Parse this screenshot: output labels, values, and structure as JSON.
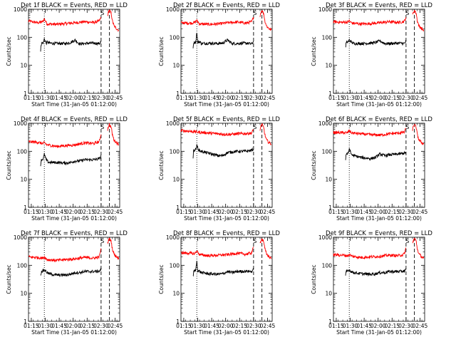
{
  "colors": {
    "events": "#000000",
    "lld": "#ff0000",
    "axes": "#000000",
    "background": "#ffffff"
  },
  "shared": {
    "xlabel": "Start Time (31-Jan-05 01:12:00)",
    "ylabel": "Counts/sec",
    "x_tick_labels": [
      "01:15",
      "01:30",
      "01:45",
      "02:00",
      "02:15",
      "02:30",
      "02:45"
    ],
    "y_tick_labels": [
      "1",
      "10",
      "100",
      "1000"
    ],
    "marker_label": "S"
  },
  "chart_data": [
    {
      "type": "line",
      "title": "Det 1f BLACK = Events, RED = LLD",
      "xlabel": "Start Time (31-Jan-05 01:12:00)",
      "ylabel": "Counts/sec",
      "x_unit": "minutes after 01:12:00",
      "xlim": [
        0,
        98
      ],
      "ylim": [
        1,
        1000
      ],
      "y_scale": "log",
      "dotted_marker_x": 17,
      "dashed_marker_x": [
        78,
        87
      ],
      "saa_marker_x": 79.5,
      "series": [
        {
          "color": "#ff0000",
          "x": [
            0,
            10,
            15,
            17,
            20,
            30,
            40,
            50,
            60,
            70,
            76,
            78
          ],
          "y": [
            380,
            330,
            360,
            450,
            300,
            290,
            310,
            330,
            360,
            340,
            380,
            520
          ]
        },
        {
          "color": "#ff0000",
          "x": [
            85,
            86,
            87,
            89,
            90,
            92,
            95,
            97
          ],
          "y": [
            600,
            800,
            900,
            700,
            400,
            250,
            200,
            180
          ]
        },
        {
          "color": "#000000",
          "x": [
            13,
            13.5,
            14,
            16,
            17,
            19,
            20,
            22,
            30,
            40,
            45,
            50,
            55,
            60,
            70,
            76,
            78
          ],
          "y": [
            30,
            55,
            60,
            65,
            90,
            60,
            70,
            62,
            60,
            60,
            65,
            80,
            58,
            60,
            62,
            60,
            70
          ]
        }
      ]
    },
    {
      "type": "line",
      "title": "Det 2f BLACK = Events, RED = LLD",
      "xlabel": "Start Time (31-Jan-05 01:12:00)",
      "ylabel": "Counts/sec",
      "x_unit": "minutes after 01:12:00",
      "xlim": [
        0,
        98
      ],
      "ylim": [
        1,
        1000
      ],
      "y_scale": "log",
      "dotted_marker_x": 17,
      "dashed_marker_x": [
        78,
        87
      ],
      "saa_marker_x": 79.5,
      "series": [
        {
          "color": "#ff0000",
          "x": [
            0,
            10,
            15,
            17,
            20,
            30,
            40,
            50,
            60,
            70,
            76,
            78
          ],
          "y": [
            330,
            320,
            340,
            400,
            300,
            290,
            300,
            330,
            350,
            320,
            360,
            520
          ]
        },
        {
          "color": "#ff0000",
          "x": [
            85,
            86,
            87,
            89,
            90,
            92,
            95,
            97
          ],
          "y": [
            600,
            800,
            900,
            700,
            400,
            250,
            200,
            180
          ]
        },
        {
          "color": "#000000",
          "x": [
            13,
            13.5,
            14,
            16,
            17,
            18,
            20,
            22,
            30,
            40,
            45,
            50,
            55,
            60,
            70,
            76,
            78
          ],
          "y": [
            40,
            60,
            65,
            70,
            160,
            65,
            70,
            60,
            62,
            60,
            62,
            80,
            60,
            60,
            62,
            58,
            70
          ]
        }
      ]
    },
    {
      "type": "line",
      "title": "Det 3f BLACK = Events, RED = LLD",
      "xlabel": "Start Time (31-Jan-05 01:12:00)",
      "ylabel": "Counts/sec",
      "x_unit": "minutes after 01:12:00",
      "xlim": [
        0,
        98
      ],
      "ylim": [
        1,
        1000
      ],
      "y_scale": "log",
      "dotted_marker_x": 17,
      "dashed_marker_x": [
        78,
        87
      ],
      "saa_marker_x": 79.5,
      "series": [
        {
          "color": "#ff0000",
          "x": [
            0,
            10,
            15,
            17,
            20,
            30,
            40,
            50,
            60,
            70,
            76,
            78
          ],
          "y": [
            360,
            340,
            350,
            380,
            320,
            300,
            310,
            330,
            360,
            340,
            370,
            520
          ]
        },
        {
          "color": "#ff0000",
          "x": [
            85,
            86,
            87,
            89,
            90,
            92,
            95,
            97
          ],
          "y": [
            600,
            800,
            900,
            700,
            400,
            250,
            200,
            180
          ]
        },
        {
          "color": "#000000",
          "x": [
            13,
            13.5,
            14,
            16,
            17,
            20,
            22,
            30,
            40,
            45,
            50,
            55,
            60,
            70,
            76,
            78
          ],
          "y": [
            40,
            60,
            65,
            70,
            80,
            65,
            60,
            60,
            62,
            65,
            75,
            60,
            60,
            62,
            60,
            70
          ]
        }
      ]
    },
    {
      "type": "line",
      "title": "Det 4f BLACK = Events, RED = LLD",
      "xlabel": "Start Time (31-Jan-05 01:12:00)",
      "ylabel": "Counts/sec",
      "x_unit": "minutes after 01:12:00",
      "xlim": [
        0,
        98
      ],
      "ylim": [
        1,
        1000
      ],
      "y_scale": "log",
      "dotted_marker_x": 17,
      "dashed_marker_x": [
        78,
        87
      ],
      "saa_marker_x": 79.5,
      "series": [
        {
          "color": "#ff0000",
          "x": [
            0,
            10,
            15,
            17,
            20,
            30,
            40,
            50,
            60,
            70,
            76,
            78
          ],
          "y": [
            220,
            210,
            190,
            200,
            170,
            150,
            160,
            170,
            200,
            190,
            220,
            400
          ]
        },
        {
          "color": "#ff0000",
          "x": [
            85,
            86,
            87,
            89,
            90,
            92,
            95,
            97
          ],
          "y": [
            600,
            800,
            900,
            700,
            400,
            250,
            200,
            180
          ]
        },
        {
          "color": "#000000",
          "x": [
            13,
            13.5,
            14,
            16,
            17,
            19,
            20,
            22,
            30,
            40,
            45,
            50,
            55,
            60,
            70,
            76,
            78
          ],
          "y": [
            30,
            45,
            50,
            55,
            80,
            50,
            45,
            40,
            40,
            38,
            40,
            45,
            45,
            50,
            50,
            55,
            65
          ]
        }
      ]
    },
    {
      "type": "line",
      "title": "Det 5f BLACK = Events, RED = LLD",
      "xlabel": "Start Time (31-Jan-05 01:12:00)",
      "ylabel": "Counts/sec",
      "x_unit": "minutes after 01:12:00",
      "xlim": [
        0,
        98
      ],
      "ylim": [
        1,
        1000
      ],
      "y_scale": "log",
      "dotted_marker_x": 17,
      "dashed_marker_x": [
        78,
        87
      ],
      "saa_marker_x": 79.5,
      "series": [
        {
          "color": "#ff0000",
          "x": [
            0,
            10,
            15,
            17,
            20,
            30,
            40,
            50,
            60,
            70,
            76,
            78
          ],
          "y": [
            550,
            520,
            500,
            490,
            480,
            450,
            420,
            400,
            420,
            430,
            450,
            600
          ]
        },
        {
          "color": "#ff0000",
          "x": [
            85,
            86,
            87,
            89,
            90,
            92,
            95,
            97
          ],
          "y": [
            600,
            800,
            900,
            700,
            400,
            250,
            200,
            180
          ]
        },
        {
          "color": "#000000",
          "x": [
            13,
            13.5,
            14,
            16,
            17,
            19,
            20,
            22,
            30,
            40,
            45,
            50,
            55,
            60,
            70,
            76,
            78
          ],
          "y": [
            60,
            100,
            110,
            120,
            160,
            115,
            105,
            100,
            85,
            70,
            70,
            90,
            95,
            100,
            100,
            110,
            120
          ]
        }
      ]
    },
    {
      "type": "line",
      "title": "Det 6f BLACK = Events, RED = LLD",
      "xlabel": "Start Time (31-Jan-05 01:12:00)",
      "ylabel": "Counts/sec",
      "x_unit": "minutes after 01:12:00",
      "xlim": [
        0,
        98
      ],
      "ylim": [
        1,
        1000
      ],
      "y_scale": "log",
      "dotted_marker_x": 17,
      "dashed_marker_x": [
        78,
        87
      ],
      "saa_marker_x": 79.5,
      "series": [
        {
          "color": "#ff0000",
          "x": [
            0,
            10,
            15,
            17,
            20,
            30,
            40,
            50,
            60,
            70,
            76,
            78
          ],
          "y": [
            470,
            460,
            460,
            550,
            450,
            420,
            390,
            380,
            420,
            450,
            480,
            650
          ]
        },
        {
          "color": "#ff0000",
          "x": [
            85,
            86,
            87,
            89,
            90,
            92,
            95,
            97
          ],
          "y": [
            600,
            800,
            900,
            700,
            400,
            250,
            200,
            180
          ]
        },
        {
          "color": "#000000",
          "x": [
            13,
            13.5,
            14,
            16,
            17,
            19,
            20,
            22,
            30,
            40,
            45,
            50,
            55,
            60,
            70,
            76,
            78
          ],
          "y": [
            50,
            75,
            80,
            85,
            130,
            80,
            75,
            70,
            60,
            55,
            60,
            80,
            70,
            75,
            80,
            85,
            90
          ]
        }
      ]
    },
    {
      "type": "line",
      "title": "Det 7f BLACK = Events, RED = LLD",
      "xlabel": "Start Time (31-Jan-05 01:12:00)",
      "ylabel": "Counts/sec",
      "x_unit": "minutes after 01:12:00",
      "xlim": [
        0,
        98
      ],
      "ylim": [
        1,
        1000
      ],
      "y_scale": "log",
      "dotted_marker_x": 17,
      "dashed_marker_x": [
        78,
        87
      ],
      "saa_marker_x": 79.5,
      "series": [
        {
          "color": "#ff0000",
          "x": [
            0,
            10,
            15,
            17,
            20,
            30,
            40,
            50,
            60,
            70,
            76,
            78
          ],
          "y": [
            200,
            190,
            180,
            200,
            160,
            150,
            160,
            170,
            190,
            180,
            200,
            400
          ]
        },
        {
          "color": "#ff0000",
          "x": [
            85,
            86,
            87,
            89,
            90,
            92,
            95,
            97
          ],
          "y": [
            600,
            800,
            900,
            700,
            400,
            250,
            200,
            180
          ]
        },
        {
          "color": "#000000",
          "x": [
            13,
            13.5,
            14,
            16,
            17,
            19,
            20,
            22,
            30,
            40,
            45,
            50,
            55,
            60,
            70,
            76,
            78
          ],
          "y": [
            40,
            55,
            60,
            65,
            70,
            60,
            55,
            50,
            45,
            45,
            48,
            55,
            55,
            60,
            60,
            62,
            70
          ]
        }
      ]
    },
    {
      "type": "line",
      "title": "Det 8f BLACK = Events, RED = LLD",
      "xlabel": "Start Time (31-Jan-05 01:12:00)",
      "ylabel": "Counts/sec",
      "x_unit": "minutes after 01:12:00",
      "xlim": [
        0,
        98
      ],
      "ylim": [
        1,
        1000
      ],
      "y_scale": "log",
      "dotted_marker_x": 17,
      "dashed_marker_x": [
        78,
        87
      ],
      "saa_marker_x": 79.5,
      "series": [
        {
          "color": "#ff0000",
          "x": [
            0,
            10,
            15,
            17,
            20,
            30,
            40,
            50,
            60,
            70,
            76,
            78
          ],
          "y": [
            280,
            270,
            260,
            330,
            240,
            220,
            230,
            240,
            270,
            250,
            280,
            450
          ]
        },
        {
          "color": "#ff0000",
          "x": [
            85,
            86,
            87,
            89,
            90,
            92,
            95,
            97
          ],
          "y": [
            600,
            800,
            900,
            700,
            400,
            250,
            200,
            180
          ]
        },
        {
          "color": "#000000",
          "x": [
            13,
            13.5,
            14,
            16,
            17,
            18,
            20,
            22,
            30,
            40,
            45,
            50,
            55,
            60,
            70,
            76,
            78
          ],
          "y": [
            40,
            55,
            60,
            70,
            150,
            65,
            60,
            55,
            50,
            48,
            50,
            60,
            55,
            60,
            62,
            60,
            70
          ]
        }
      ]
    },
    {
      "type": "line",
      "title": "Det 9f BLACK = Events, RED = LLD",
      "xlabel": "Start Time (31-Jan-05 01:12:00)",
      "ylabel": "Counts/sec",
      "x_unit": "minutes after 01:12:00",
      "xlim": [
        0,
        98
      ],
      "ylim": [
        1,
        1000
      ],
      "y_scale": "log",
      "dotted_marker_x": 17,
      "dashed_marker_x": [
        78,
        87
      ],
      "saa_marker_x": 79.5,
      "series": [
        {
          "color": "#ff0000",
          "x": [
            0,
            10,
            15,
            17,
            20,
            30,
            40,
            50,
            60,
            70,
            76,
            78
          ],
          "y": [
            240,
            230,
            220,
            240,
            210,
            190,
            200,
            210,
            230,
            220,
            250,
            420
          ]
        },
        {
          "color": "#ff0000",
          "x": [
            85,
            86,
            87,
            89,
            90,
            92,
            95,
            97
          ],
          "y": [
            600,
            800,
            900,
            700,
            400,
            250,
            200,
            180
          ]
        },
        {
          "color": "#000000",
          "x": [
            13,
            13.5,
            14,
            16,
            17,
            19,
            20,
            22,
            30,
            40,
            45,
            50,
            55,
            60,
            70,
            76,
            78
          ],
          "y": [
            40,
            55,
            60,
            65,
            70,
            60,
            58,
            55,
            50,
            48,
            50,
            55,
            55,
            60,
            60,
            62,
            70
          ]
        }
      ]
    }
  ]
}
